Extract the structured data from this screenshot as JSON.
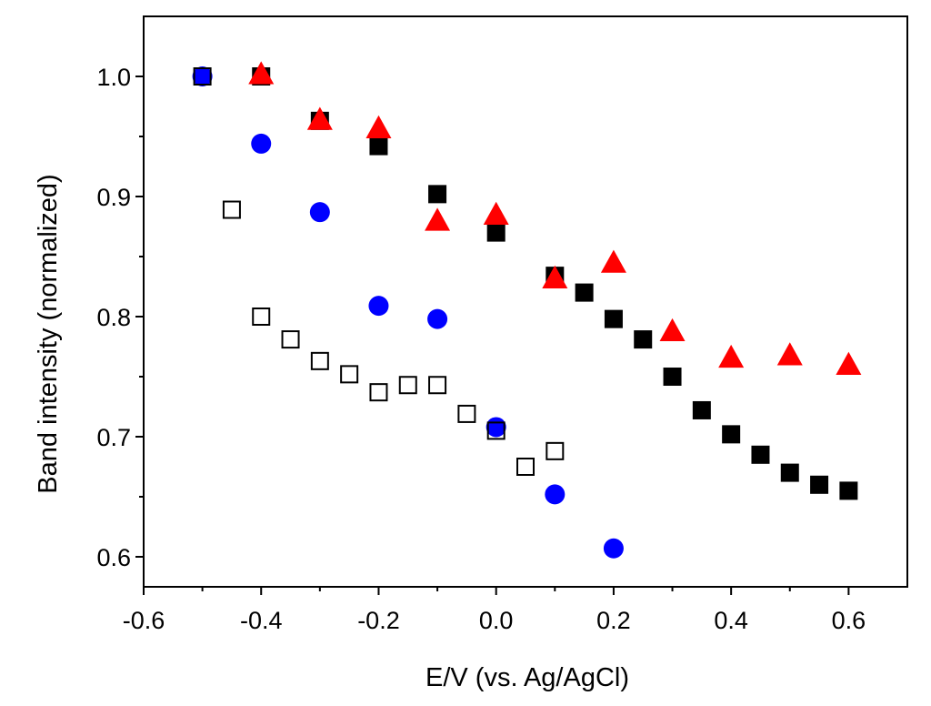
{
  "chart_data": {
    "type": "scatter",
    "title": "",
    "xlabel": "E/V (vs. Ag/AgCl)",
    "ylabel": "Band intensity (normalized)",
    "xlim": [
      -0.6,
      0.7
    ],
    "ylim": [
      0.575,
      1.05
    ],
    "xticks": [
      -0.6,
      -0.4,
      -0.2,
      0.0,
      0.2,
      0.4,
      0.6
    ],
    "xtick_labels": [
      "-0.6",
      "-0.4",
      "-0.2",
      "0.0",
      "0.2",
      "0.4",
      "0.6"
    ],
    "yticks": [
      0.6,
      0.7,
      0.8,
      0.9,
      1.0
    ],
    "ytick_labels": [
      "0.6",
      "0.7",
      "0.8",
      "0.9",
      "1.0"
    ],
    "grid": false,
    "legend": null,
    "series": [
      {
        "name": "filled squares",
        "marker": "square-filled",
        "color": "#000000",
        "points": [
          {
            "x": -0.4,
            "y": 1.0
          },
          {
            "x": -0.3,
            "y": 0.963
          },
          {
            "x": -0.2,
            "y": 0.942
          },
          {
            "x": -0.1,
            "y": 0.902
          },
          {
            "x": 0.0,
            "y": 0.87
          },
          {
            "x": 0.1,
            "y": 0.834
          },
          {
            "x": 0.15,
            "y": 0.82
          },
          {
            "x": 0.2,
            "y": 0.798
          },
          {
            "x": 0.25,
            "y": 0.781
          },
          {
            "x": 0.3,
            "y": 0.75
          },
          {
            "x": 0.35,
            "y": 0.722
          },
          {
            "x": 0.4,
            "y": 0.702
          },
          {
            "x": 0.45,
            "y": 0.685
          },
          {
            "x": 0.5,
            "y": 0.67
          },
          {
            "x": 0.55,
            "y": 0.66
          },
          {
            "x": 0.6,
            "y": 0.655
          }
        ]
      },
      {
        "name": "triangles",
        "marker": "triangle-filled",
        "color": "#ff0000",
        "points": [
          {
            "x": -0.4,
            "y": 1.002
          },
          {
            "x": -0.3,
            "y": 0.964
          },
          {
            "x": -0.2,
            "y": 0.957
          },
          {
            "x": -0.1,
            "y": 0.88
          },
          {
            "x": 0.0,
            "y": 0.885
          },
          {
            "x": 0.1,
            "y": 0.832
          },
          {
            "x": 0.2,
            "y": 0.845
          },
          {
            "x": 0.3,
            "y": 0.788
          },
          {
            "x": 0.4,
            "y": 0.766
          },
          {
            "x": 0.5,
            "y": 0.768
          },
          {
            "x": 0.6,
            "y": 0.76
          }
        ]
      },
      {
        "name": "circles",
        "marker": "circle-filled",
        "color": "#0000ff",
        "points": [
          {
            "x": -0.5,
            "y": 1.0
          },
          {
            "x": -0.4,
            "y": 0.944
          },
          {
            "x": -0.3,
            "y": 0.887
          },
          {
            "x": -0.2,
            "y": 0.809
          },
          {
            "x": -0.1,
            "y": 0.798
          },
          {
            "x": 0.0,
            "y": 0.708
          },
          {
            "x": 0.1,
            "y": 0.652
          },
          {
            "x": 0.2,
            "y": 0.607
          }
        ]
      },
      {
        "name": "open squares",
        "marker": "square-open",
        "color": "#000000",
        "points": [
          {
            "x": -0.5,
            "y": 1.0
          },
          {
            "x": -0.45,
            "y": 0.889
          },
          {
            "x": -0.4,
            "y": 0.8
          },
          {
            "x": -0.35,
            "y": 0.781
          },
          {
            "x": -0.3,
            "y": 0.763
          },
          {
            "x": -0.25,
            "y": 0.752
          },
          {
            "x": -0.2,
            "y": 0.737
          },
          {
            "x": -0.15,
            "y": 0.743
          },
          {
            "x": -0.1,
            "y": 0.743
          },
          {
            "x": -0.05,
            "y": 0.719
          },
          {
            "x": 0.0,
            "y": 0.705
          },
          {
            "x": 0.05,
            "y": 0.675
          },
          {
            "x": 0.1,
            "y": 0.688
          }
        ]
      }
    ]
  }
}
